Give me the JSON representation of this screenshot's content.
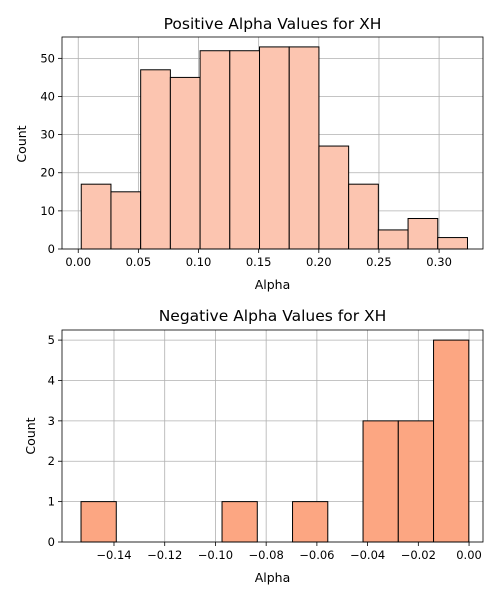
{
  "chart_data": [
    {
      "type": "bar",
      "title": "Positive Alpha Values for XH",
      "xlabel": "Alpha",
      "ylabel": "Count",
      "bar_color": "#fcc5b0",
      "edge_color": "#000000",
      "grid": true,
      "xlim": [
        -0.0135,
        0.3365
      ],
      "ylim": [
        0,
        55.6
      ],
      "xticks": [
        0.0,
        0.05,
        0.1,
        0.15,
        0.2,
        0.25,
        0.3
      ],
      "xtick_labels": [
        "0.00",
        "0.05",
        "0.10",
        "0.15",
        "0.20",
        "0.25",
        "0.30"
      ],
      "yticks": [
        0,
        10,
        20,
        30,
        40,
        50
      ],
      "ytick_labels": [
        "0",
        "10",
        "20",
        "30",
        "40",
        "50"
      ],
      "bins": [
        {
          "x0": 0.0025,
          "x1": 0.0272,
          "value": 17
        },
        {
          "x0": 0.0272,
          "x1": 0.0519,
          "value": 15
        },
        {
          "x0": 0.0519,
          "x1": 0.0766,
          "value": 47
        },
        {
          "x0": 0.0766,
          "x1": 0.1013,
          "value": 45
        },
        {
          "x0": 0.1013,
          "x1": 0.126,
          "value": 52
        },
        {
          "x0": 0.126,
          "x1": 0.1507,
          "value": 52
        },
        {
          "x0": 0.1507,
          "x1": 0.1754,
          "value": 53
        },
        {
          "x0": 0.1754,
          "x1": 0.2001,
          "value": 53
        },
        {
          "x0": 0.2001,
          "x1": 0.2248,
          "value": 27
        },
        {
          "x0": 0.2248,
          "x1": 0.2495,
          "value": 17
        },
        {
          "x0": 0.2495,
          "x1": 0.2742,
          "value": 5
        },
        {
          "x0": 0.2742,
          "x1": 0.2989,
          "value": 8
        },
        {
          "x0": 0.2989,
          "x1": 0.3236,
          "value": 3
        }
      ]
    },
    {
      "type": "bar",
      "title": "Negative Alpha Values for XH",
      "xlabel": "Alpha",
      "ylabel": "Count",
      "bar_color": "#fca682",
      "edge_color": "#000000",
      "grid": true,
      "xlim": [
        -0.1605,
        0.0055
      ],
      "ylim": [
        0,
        5.25
      ],
      "xticks": [
        -0.14,
        -0.12,
        -0.1,
        -0.08,
        -0.06,
        -0.04,
        -0.02,
        0.0
      ],
      "xtick_labels": [
        "−0.14",
        "−0.12",
        "−0.10",
        "−0.08",
        "−0.06",
        "−0.04",
        "−0.02",
        "0.00"
      ],
      "yticks": [
        0,
        1,
        2,
        3,
        4,
        5
      ],
      "ytick_labels": [
        "0",
        "1",
        "2",
        "3",
        "4",
        "5"
      ],
      "bins": [
        {
          "x0": -0.153,
          "x1": -0.1391,
          "value": 1
        },
        {
          "x0": -0.1391,
          "x1": -0.1252,
          "value": 0
        },
        {
          "x0": -0.1252,
          "x1": -0.1113,
          "value": 0
        },
        {
          "x0": -0.1113,
          "x1": -0.0974,
          "value": 0
        },
        {
          "x0": -0.0974,
          "x1": -0.0835,
          "value": 1
        },
        {
          "x0": -0.0835,
          "x1": -0.0696,
          "value": 0
        },
        {
          "x0": -0.0696,
          "x1": -0.0557,
          "value": 1
        },
        {
          "x0": -0.0557,
          "x1": -0.0418,
          "value": 0
        },
        {
          "x0": -0.0418,
          "x1": -0.0279,
          "value": 3
        },
        {
          "x0": -0.0279,
          "x1": -0.014,
          "value": 3
        },
        {
          "x0": -0.014,
          "x1": -0.0001,
          "value": 5
        }
      ]
    }
  ]
}
